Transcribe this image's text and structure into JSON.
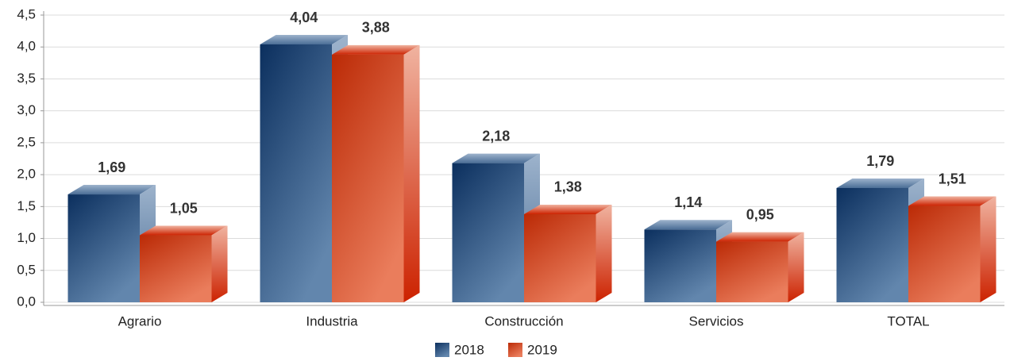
{
  "chart_data": {
    "type": "bar3d",
    "categories": [
      "Agrario",
      "Industria",
      "Construcción",
      "Servicios",
      "TOTAL"
    ],
    "series": [
      {
        "name": "2018",
        "color": "#1f3f6e",
        "values": [
          1.69,
          4.04,
          2.18,
          1.14,
          1.79
        ],
        "value_labels": [
          "1,69",
          "4,04",
          "2,18",
          "1,14",
          "1,79"
        ]
      },
      {
        "name": "2019",
        "color": "#d9411e",
        "values": [
          1.05,
          3.88,
          1.38,
          0.95,
          1.51
        ],
        "value_labels": [
          "1,05",
          "3,88",
          "1,38",
          "0,95",
          "1,51"
        ]
      }
    ],
    "ylim": [
      0,
      4.5
    ],
    "yticks": [
      {
        "value": 0,
        "label": "0,0"
      },
      {
        "value": 0.5,
        "label": "0,5"
      },
      {
        "value": 1,
        "label": "1,0"
      },
      {
        "value": 1.5,
        "label": "1,5"
      },
      {
        "value": 2,
        "label": "2,0"
      },
      {
        "value": 2.5,
        "label": "2,5"
      },
      {
        "value": 3,
        "label": "3,0"
      },
      {
        "value": 3.5,
        "label": "3,5"
      },
      {
        "value": 4,
        "label": "4,0"
      },
      {
        "value": 4.5,
        "label": "4,5"
      }
    ],
    "grid": true,
    "legend": "bottom"
  }
}
